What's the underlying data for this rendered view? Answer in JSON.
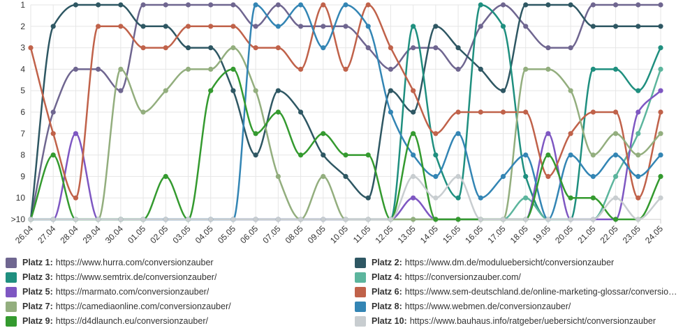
{
  "chart_data": {
    "type": "line",
    "x": [
      "26.04",
      "27.04",
      "28.04",
      "29.04",
      "30.04",
      "01.05",
      "02.05",
      "03.05",
      "04.05",
      "05.05",
      "06.05",
      "07.05",
      "08.05",
      "09.05",
      "10.05",
      "11.05",
      "12.05",
      "13.05",
      "14.05",
      "15.05",
      "16.05",
      "17.05",
      "18.05",
      "19.05",
      "20.05",
      "21.05",
      "22.05",
      "23.05",
      "24.05"
    ],
    "y_ticks": [
      "1",
      "2",
      "3",
      "4",
      "5",
      "6",
      "7",
      "8",
      "9",
      "10",
      ">10"
    ],
    "y_axis_reversed": true,
    "ylim": [
      1,
      11
    ],
    "grid": true,
    "legend_position": "bottom",
    "series": [
      {
        "label": "Platz 1:",
        "name": "https://www.hurra.com/conversionzauber",
        "color": "#6f6690",
        "values": [
          11,
          6,
          4,
          4,
          5,
          1,
          1,
          1,
          1,
          1,
          2,
          1,
          2,
          2,
          2,
          3,
          4,
          3,
          3,
          4,
          2,
          1,
          2,
          3,
          3,
          1,
          1,
          1,
          1
        ]
      },
      {
        "label": "Platz 2:",
        "name": "https://www.dm.de/moduluebersicht/conversionzauber",
        "color": "#2e5763",
        "values": [
          11,
          2,
          1,
          1,
          1,
          2,
          2,
          3,
          3,
          5,
          8,
          5,
          6,
          8,
          9,
          10,
          5,
          6,
          2,
          3,
          4,
          5,
          1,
          1,
          1,
          2,
          2,
          2,
          2
        ]
      },
      {
        "label": "Platz 3:",
        "name": "https://www.semtrix.de/conversionzauber/",
        "color": "#1f8f7f",
        "values": [
          11,
          11,
          11,
          11,
          11,
          11,
          11,
          11,
          11,
          11,
          11,
          11,
          11,
          11,
          11,
          11,
          11,
          2,
          8,
          10,
          1,
          2,
          9,
          11,
          11,
          4,
          4,
          5,
          3
        ]
      },
      {
        "label": "Platz 4:",
        "name": "https://conversionzauber.com/",
        "color": "#5cb59d",
        "values": [
          11,
          11,
          11,
          11,
          11,
          11,
          11,
          11,
          11,
          11,
          11,
          11,
          11,
          11,
          11,
          11,
          11,
          11,
          11,
          11,
          11,
          11,
          10,
          11,
          11,
          11,
          9,
          7,
          4
        ]
      },
      {
        "label": "Platz 5:",
        "name": "https://marmato.com/conversionzauber/",
        "color": "#7e57c2",
        "values": [
          11,
          11,
          7,
          11,
          11,
          11,
          11,
          11,
          11,
          11,
          11,
          11,
          11,
          11,
          11,
          11,
          11,
          10,
          11,
          11,
          11,
          11,
          11,
          7,
          11,
          11,
          11,
          6,
          5
        ]
      },
      {
        "label": "Platz 6:",
        "name": "https://www.sem-deutschland.de/online-marketing-glossar/conversion…",
        "color": "#c0624a",
        "values": [
          3,
          7,
          10,
          2,
          2,
          3,
          3,
          2,
          2,
          2,
          3,
          3,
          4,
          1,
          4,
          1,
          3,
          5,
          7,
          6,
          6,
          6,
          6,
          9,
          7,
          6,
          6,
          10,
          6
        ]
      },
      {
        "label": "Platz 7:",
        "name": "https://camediaonline.com/conversionzauber/",
        "color": "#93ae7e",
        "values": [
          11,
          11,
          11,
          11,
          4,
          6,
          5,
          4,
          4,
          3,
          5,
          9,
          11,
          9,
          11,
          11,
          11,
          11,
          11,
          11,
          11,
          11,
          4,
          4,
          5,
          8,
          7,
          8,
          7
        ]
      },
      {
        "label": "Platz 8:",
        "name": "https://www.webmen.de/conversionzauber/",
        "color": "#3385b4",
        "values": [
          11,
          11,
          11,
          11,
          11,
          11,
          11,
          11,
          11,
          11,
          1,
          2,
          1,
          3,
          1,
          2,
          6,
          8,
          9,
          7,
          10,
          9,
          8,
          11,
          8,
          9,
          8,
          9,
          8
        ]
      },
      {
        "label": "Platz 9:",
        "name": "https://d4dlaunch.eu/conversionzauber/",
        "color": "#349a2f",
        "values": [
          11,
          8,
          11,
          11,
          11,
          11,
          9,
          11,
          5,
          4,
          7,
          6,
          8,
          7,
          8,
          8,
          11,
          7,
          11,
          11,
          11,
          11,
          11,
          8,
          10,
          10,
          11,
          11,
          9
        ]
      },
      {
        "label": "Platz 10:",
        "name": "https://www.bauhaus.info/ratgeber/uebersicht/conversionzauber",
        "color": "#c8cdd0",
        "values": [
          11,
          11,
          11,
          11,
          11,
          11,
          11,
          11,
          11,
          11,
          11,
          11,
          11,
          11,
          11,
          11,
          11,
          9,
          10,
          9,
          11,
          11,
          11,
          11,
          11,
          11,
          10,
          11,
          10
        ]
      }
    ]
  }
}
